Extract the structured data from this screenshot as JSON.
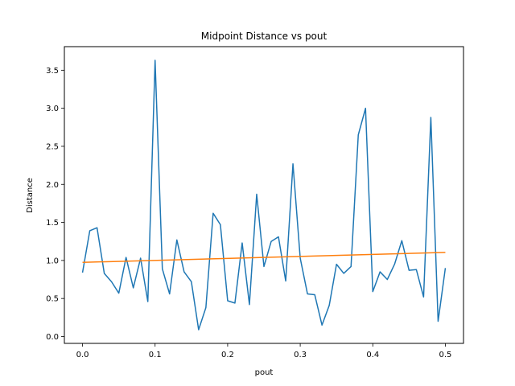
{
  "chart_data": {
    "type": "line",
    "title": "Midpoint Distance vs pout",
    "xlabel": "pout",
    "ylabel": "Distance",
    "xlim": [
      -0.025,
      0.525
    ],
    "ylim": [
      -0.09,
      3.81
    ],
    "xticks": [
      0.0,
      0.1,
      0.2,
      0.3,
      0.4,
      0.5
    ],
    "xtick_labels": [
      "0.0",
      "0.1",
      "0.2",
      "0.3",
      "0.4",
      "0.5"
    ],
    "yticks": [
      0.0,
      0.5,
      1.0,
      1.5,
      2.0,
      2.5,
      3.0,
      3.5
    ],
    "ytick_labels": [
      "0.0",
      "0.5",
      "1.0",
      "1.5",
      "2.0",
      "2.5",
      "3.0",
      "3.5"
    ],
    "grid": false,
    "series": [
      {
        "color": "#1f77b4",
        "x": [
          0.0,
          0.01,
          0.02,
          0.03,
          0.04,
          0.05,
          0.06,
          0.07,
          0.08,
          0.09,
          0.1,
          0.11,
          0.12,
          0.13,
          0.14,
          0.15,
          0.16,
          0.17,
          0.18,
          0.19,
          0.2,
          0.21,
          0.22,
          0.23,
          0.24,
          0.25,
          0.26,
          0.27,
          0.28,
          0.29,
          0.3,
          0.31,
          0.32,
          0.33,
          0.34,
          0.35,
          0.36,
          0.37,
          0.38,
          0.39,
          0.4,
          0.41,
          0.42,
          0.43,
          0.44,
          0.45,
          0.46,
          0.47,
          0.48,
          0.49,
          0.5
        ],
        "y": [
          0.84,
          1.39,
          1.43,
          0.83,
          0.72,
          0.57,
          1.04,
          0.64,
          1.03,
          0.46,
          3.63,
          0.89,
          0.56,
          1.27,
          0.85,
          0.72,
          0.09,
          0.38,
          1.62,
          1.47,
          0.47,
          0.44,
          1.23,
          0.42,
          1.87,
          0.92,
          1.25,
          1.31,
          0.73,
          2.27,
          1.03,
          0.56,
          0.55,
          0.15,
          0.41,
          0.95,
          0.83,
          0.92,
          2.65,
          3.0,
          0.59,
          0.85,
          0.75,
          0.95,
          1.26,
          0.87,
          0.88,
          0.52,
          2.88,
          0.2,
          0.9
        ]
      },
      {
        "color": "#ff7f0e",
        "x": [
          0.0,
          0.5
        ],
        "y": [
          0.975,
          1.105
        ]
      }
    ]
  }
}
